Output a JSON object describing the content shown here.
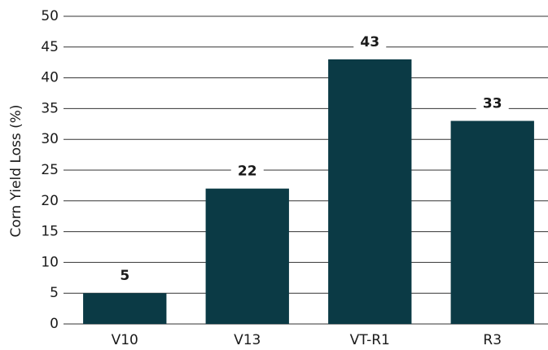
{
  "chart_data": {
    "type": "bar",
    "y_label": "Corn Yield Loss (%)",
    "categories": [
      "V10",
      "V13",
      "VT-R1",
      "R3"
    ],
    "values": [
      5,
      22,
      43,
      33
    ],
    "color": "#0b3a45",
    "ylim": [
      0,
      50
    ],
    "yticks": [
      0,
      5,
      10,
      15,
      20,
      25,
      30,
      35,
      40,
      45,
      50
    ],
    "grid": true
  }
}
